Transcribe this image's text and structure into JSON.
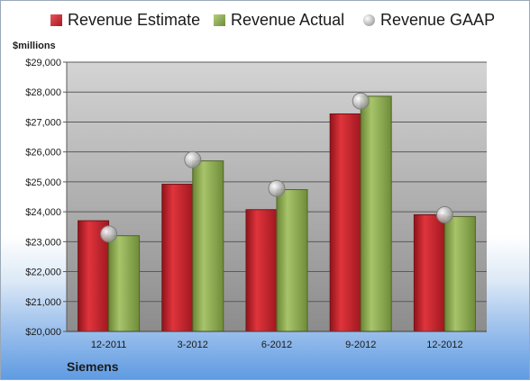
{
  "legend": {
    "estimate": "Revenue Estimate",
    "actual": "Revenue Actual",
    "gaap": "Revenue GAAP"
  },
  "colors": {
    "estimate": "#c8202a",
    "actual": "#8fae52",
    "gaap": "#c9c9c9",
    "plot_top": "#d4d4d4",
    "plot_bottom": "#8c8c8c"
  },
  "chart_data": {
    "type": "bar",
    "ylabel": "$millions",
    "company": "Siemens",
    "categories": [
      "12-2011",
      "3-2012",
      "6-2012",
      "9-2012",
      "12-2012"
    ],
    "series": [
      {
        "name": "Revenue Estimate",
        "values": [
          23700,
          24920,
          24070,
          27270,
          23900
        ]
      },
      {
        "name": "Revenue Actual",
        "values": [
          23200,
          25700,
          24740,
          27860,
          23840
        ]
      },
      {
        "name": "Revenue GAAP",
        "values": [
          23260,
          25740,
          24780,
          27700,
          23900
        ]
      }
    ],
    "ylim": [
      20000,
      29000
    ],
    "yticks": [
      "$20,000",
      "$21,000",
      "$22,000",
      "$23,000",
      "$24,000",
      "$25,000",
      "$26,000",
      "$27,000",
      "$28,000",
      "$29,000"
    ],
    "grid": true,
    "legend_position": "top"
  }
}
